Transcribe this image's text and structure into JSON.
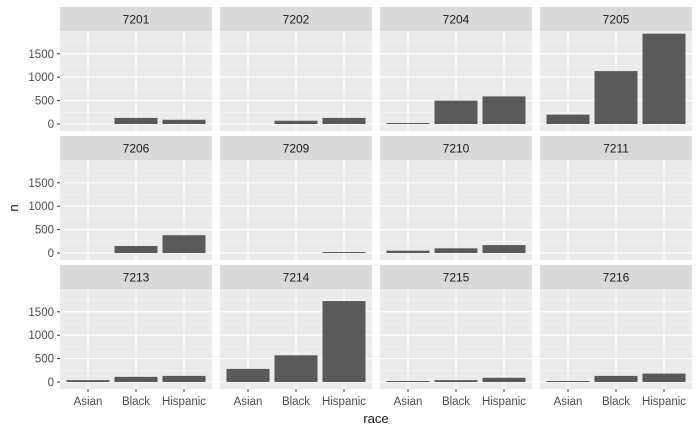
{
  "chart_data": {
    "type": "bar",
    "facet_layout": "grid 3x4",
    "x_label": "race",
    "y_label": "n",
    "categories": [
      "Asian",
      "Black",
      "Hispanic"
    ],
    "y_ticks": [
      0,
      500,
      1000,
      1500
    ],
    "ylim": [
      0,
      1950
    ],
    "grid": true,
    "bar_color": "#595959",
    "panel_background": "#ebebeb",
    "strip_background": "#d9d9d9",
    "panels": [
      {
        "label": "7201",
        "values": [
          null,
          130,
          90
        ]
      },
      {
        "label": "7202",
        "values": [
          null,
          70,
          130
        ]
      },
      {
        "label": "7204",
        "values": [
          10,
          500,
          590
        ]
      },
      {
        "label": "7205",
        "values": [
          200,
          1130,
          1930
        ]
      },
      {
        "label": "7206",
        "values": [
          null,
          150,
          380
        ]
      },
      {
        "label": "7209",
        "values": [
          null,
          null,
          20
        ]
      },
      {
        "label": "7210",
        "values": [
          50,
          100,
          170
        ]
      },
      {
        "label": "7211",
        "values": [
          null,
          null,
          null
        ]
      },
      {
        "label": "7213",
        "values": [
          40,
          110,
          130
        ]
      },
      {
        "label": "7214",
        "values": [
          280,
          570,
          1730
        ]
      },
      {
        "label": "7215",
        "values": [
          20,
          40,
          90
        ]
      },
      {
        "label": "7216",
        "values": [
          15,
          130,
          180
        ]
      }
    ]
  }
}
